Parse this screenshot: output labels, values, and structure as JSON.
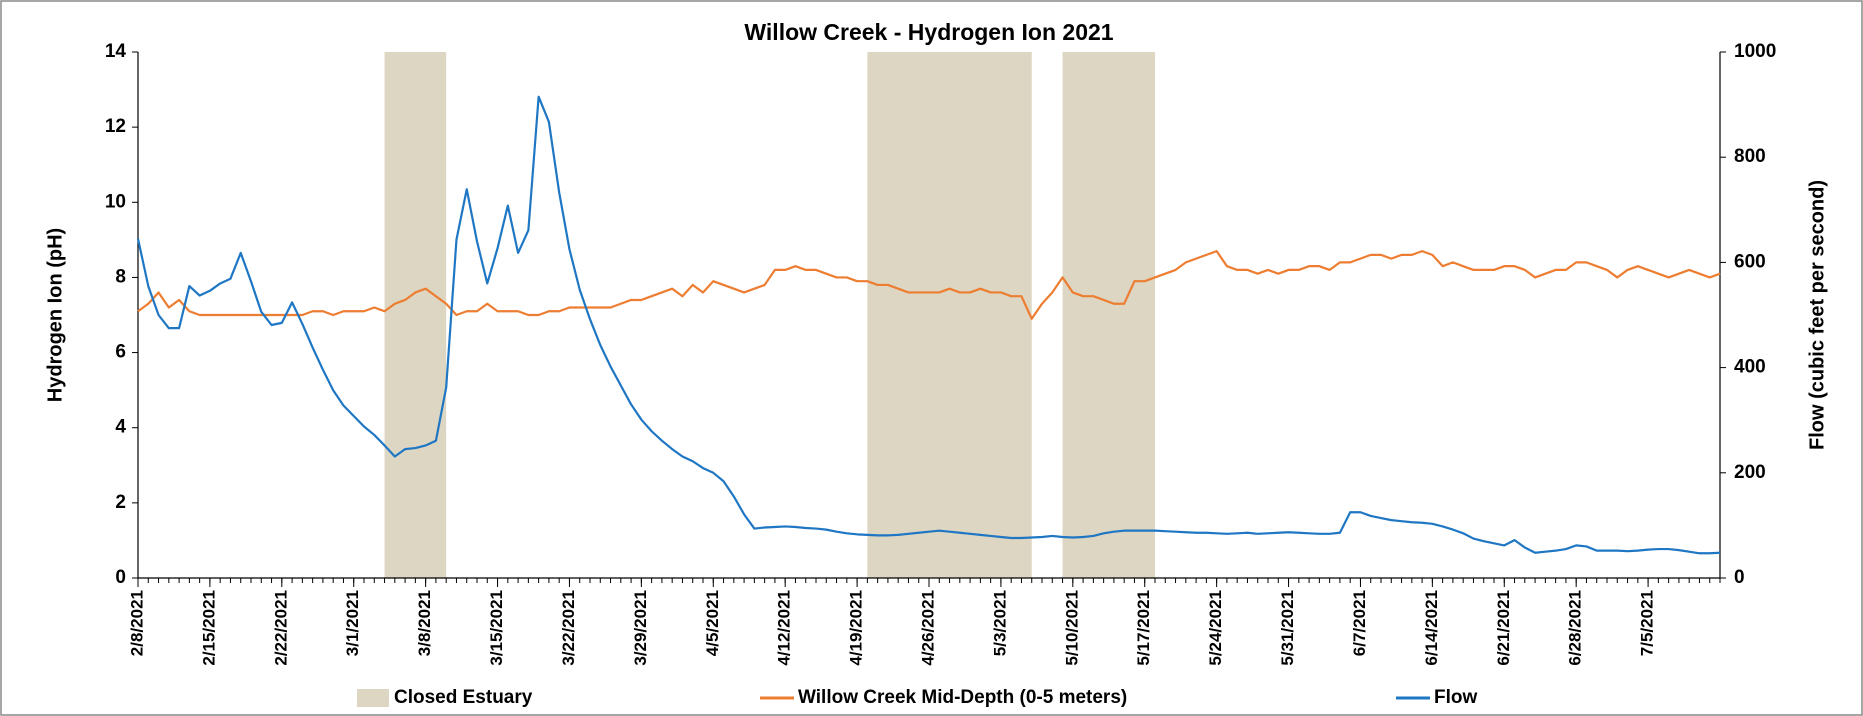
{
  "chart_data": {
    "type": "line",
    "title": "Willow Creek - Hydrogen Ion 2021",
    "y_label": "Hydrogen Ion (pH)",
    "y2_label": "Flow (cubic feet per second)",
    "x": [
      "2/8/2021",
      "2/9/2021",
      "2/10/2021",
      "2/11/2021",
      "2/12/2021",
      "2/13/2021",
      "2/14/2021",
      "2/15/2021",
      "2/16/2021",
      "2/17/2021",
      "2/18/2021",
      "2/19/2021",
      "2/20/2021",
      "2/21/2021",
      "2/22/2021",
      "2/23/2021",
      "2/24/2021",
      "2/25/2021",
      "2/26/2021",
      "2/27/2021",
      "2/28/2021",
      "3/1/2021",
      "3/2/2021",
      "3/3/2021",
      "3/4/2021",
      "3/5/2021",
      "3/6/2021",
      "3/7/2021",
      "3/8/2021",
      "3/9/2021",
      "3/10/2021",
      "3/11/2021",
      "3/12/2021",
      "3/13/2021",
      "3/14/2021",
      "3/15/2021",
      "3/16/2021",
      "3/17/2021",
      "3/18/2021",
      "3/19/2021",
      "3/20/2021",
      "3/21/2021",
      "3/22/2021",
      "3/23/2021",
      "3/24/2021",
      "3/25/2021",
      "3/26/2021",
      "3/27/2021",
      "3/28/2021",
      "3/29/2021",
      "3/30/2021",
      "3/31/2021",
      "4/1/2021",
      "4/2/2021",
      "4/3/2021",
      "4/4/2021",
      "4/5/2021",
      "4/6/2021",
      "4/7/2021",
      "4/8/2021",
      "4/9/2021",
      "4/10/2021",
      "4/11/2021",
      "4/12/2021",
      "4/13/2021",
      "4/14/2021",
      "4/15/2021",
      "4/16/2021",
      "4/17/2021",
      "4/18/2021",
      "4/19/2021",
      "4/20/2021",
      "4/21/2021",
      "4/22/2021",
      "4/23/2021",
      "4/24/2021",
      "4/25/2021",
      "4/26/2021",
      "4/27/2021",
      "4/28/2021",
      "4/29/2021",
      "4/30/2021",
      "5/1/2021",
      "5/2/2021",
      "5/3/2021",
      "5/4/2021",
      "5/5/2021",
      "5/6/2021",
      "5/7/2021",
      "5/8/2021",
      "5/9/2021",
      "5/10/2021",
      "5/11/2021",
      "5/12/2021",
      "5/13/2021",
      "5/14/2021",
      "5/15/2021",
      "5/16/2021",
      "5/17/2021",
      "5/18/2021",
      "5/19/2021",
      "5/20/2021",
      "5/21/2021",
      "5/22/2021",
      "5/23/2021",
      "5/24/2021",
      "5/25/2021",
      "5/26/2021",
      "5/27/2021",
      "5/28/2021",
      "5/29/2021",
      "5/30/2021",
      "5/31/2021",
      "6/1/2021",
      "6/2/2021",
      "6/3/2021",
      "6/4/2021",
      "6/5/2021",
      "6/6/2021",
      "6/7/2021",
      "6/8/2021",
      "6/9/2021",
      "6/10/2021",
      "6/11/2021",
      "6/12/2021",
      "6/13/2021",
      "6/14/2021",
      "6/15/2021",
      "6/16/2021",
      "6/17/2021",
      "6/18/2021",
      "6/19/2021",
      "6/20/2021",
      "6/21/2021",
      "6/22/2021",
      "6/23/2021",
      "6/24/2021",
      "6/25/2021",
      "6/26/2021",
      "6/27/2021",
      "6/28/2021",
      "6/29/2021",
      "6/30/2021",
      "7/1/2021",
      "7/2/2021",
      "7/3/2021",
      "7/4/2021",
      "7/5/2021",
      "7/6/2021",
      "7/7/2021",
      "7/8/2021",
      "7/9/2021",
      "7/10/2021",
      "7/11/2021",
      "7/12/2021"
    ],
    "xlim": [
      "2/8/2021",
      "7/12/2021"
    ],
    "xticks": [
      "2/8/2021",
      "2/15/2021",
      "2/22/2021",
      "3/1/2021",
      "3/8/2021",
      "3/15/2021",
      "3/22/2021",
      "3/29/2021",
      "4/5/2021",
      "4/12/2021",
      "4/19/2021",
      "4/26/2021",
      "5/3/2021",
      "5/10/2021",
      "5/17/2021",
      "5/24/2021",
      "5/31/2021",
      "6/7/2021",
      "6/14/2021",
      "6/21/2021",
      "6/28/2021",
      "7/5/2021"
    ],
    "ylim": [
      0,
      14
    ],
    "yticks": [
      0,
      2,
      4,
      6,
      8,
      10,
      12,
      14
    ],
    "y2lim": [
      0,
      1000
    ],
    "y2ticks": [
      0,
      200,
      400,
      600,
      800,
      1000
    ],
    "shaded_ranges": {
      "name": "Closed Estuary",
      "color": "#ddd6c2",
      "ranges": [
        [
          "3/4/2021",
          "3/10/2021"
        ],
        [
          "4/20/2021",
          "5/6/2021"
        ],
        [
          "5/9/2021",
          "5/18/2021"
        ]
      ]
    },
    "series": [
      {
        "name": "Willow Creek Mid-Depth (0-5 meters)",
        "color": "#ed7d31",
        "axis": "y",
        "values": [
          7.1,
          7.3,
          7.6,
          7.2,
          7.4,
          7.1,
          7.0,
          7.0,
          7.0,
          7.0,
          7.0,
          7.0,
          7.0,
          7.0,
          7.0,
          7.0,
          7.0,
          7.1,
          7.1,
          7.0,
          7.1,
          7.1,
          7.1,
          7.2,
          7.1,
          7.3,
          7.4,
          7.6,
          7.7,
          7.5,
          7.3,
          7.0,
          7.1,
          7.1,
          7.3,
          7.1,
          7.1,
          7.1,
          7.0,
          7.0,
          7.1,
          7.1,
          7.2,
          7.2,
          7.2,
          7.2,
          7.2,
          7.3,
          7.4,
          7.4,
          7.5,
          7.6,
          7.7,
          7.5,
          7.8,
          7.6,
          7.9,
          7.8,
          7.7,
          7.6,
          7.7,
          7.8,
          8.2,
          8.2,
          8.3,
          8.2,
          8.2,
          8.1,
          8.0,
          8.0,
          7.9,
          7.9,
          7.8,
          7.8,
          7.7,
          7.6,
          7.6,
          7.6,
          7.6,
          7.7,
          7.6,
          7.6,
          7.7,
          7.6,
          7.6,
          7.5,
          7.5,
          6.9,
          7.3,
          7.6,
          8.0,
          7.6,
          7.5,
          7.5,
          7.4,
          7.3,
          7.3,
          7.9,
          7.9,
          8.0,
          8.1,
          8.2,
          8.4,
          8.5,
          8.6,
          8.7,
          8.3,
          8.2,
          8.2,
          8.1,
          8.2,
          8.1,
          8.2,
          8.2,
          8.3,
          8.3,
          8.2,
          8.4,
          8.4,
          8.5,
          8.6,
          8.6,
          8.5,
          8.6,
          8.6,
          8.7,
          8.6,
          8.3,
          8.4,
          8.3,
          8.2,
          8.2,
          8.2,
          8.3,
          8.3,
          8.2,
          8.0,
          8.1,
          8.2,
          8.2,
          8.4,
          8.4,
          8.3,
          8.2,
          8.0,
          8.2,
          8.3,
          8.2,
          8.1,
          8.0,
          8.1,
          8.2,
          8.1,
          8.0,
          8.1
        ]
      },
      {
        "name": "Flow",
        "color": "#1f77c4",
        "axis": "y2",
        "values": [
          645,
          555,
          500,
          475,
          475,
          555,
          537,
          546,
          560,
          569,
          618,
          564,
          506,
          481,
          485,
          524,
          483,
          438,
          396,
          357,
          328,
          308,
          288,
          272,
          252,
          231,
          245,
          247,
          252,
          261,
          362,
          643,
          739,
          640,
          560,
          627,
          708,
          618,
          661,
          915,
          867,
          733,
          625,
          548,
          492,
          443,
          402,
          366,
          330,
          301,
          279,
          261,
          245,
          231,
          222,
          209,
          200,
          184,
          155,
          121,
          94,
          96,
          97,
          98,
          97,
          95,
          94,
          92,
          88,
          85,
          83,
          82,
          81,
          81,
          82,
          84,
          86,
          88,
          90,
          88,
          86,
          84,
          82,
          80,
          78,
          76,
          76,
          77,
          78,
          80,
          78,
          77,
          78,
          80,
          85,
          88,
          90,
          90,
          90,
          90,
          89,
          88,
          87,
          86,
          86,
          85,
          84,
          85,
          86,
          84,
          85,
          86,
          87,
          86,
          85,
          84,
          84,
          86,
          125,
          125,
          118,
          114,
          110,
          108,
          106,
          105,
          103,
          98,
          92,
          85,
          75,
          70,
          66,
          62,
          72,
          58,
          48,
          50,
          52,
          55,
          62,
          60,
          52,
          52,
          52,
          51,
          52,
          54,
          55,
          55,
          53,
          50,
          47,
          47,
          48
        ]
      }
    ]
  }
}
